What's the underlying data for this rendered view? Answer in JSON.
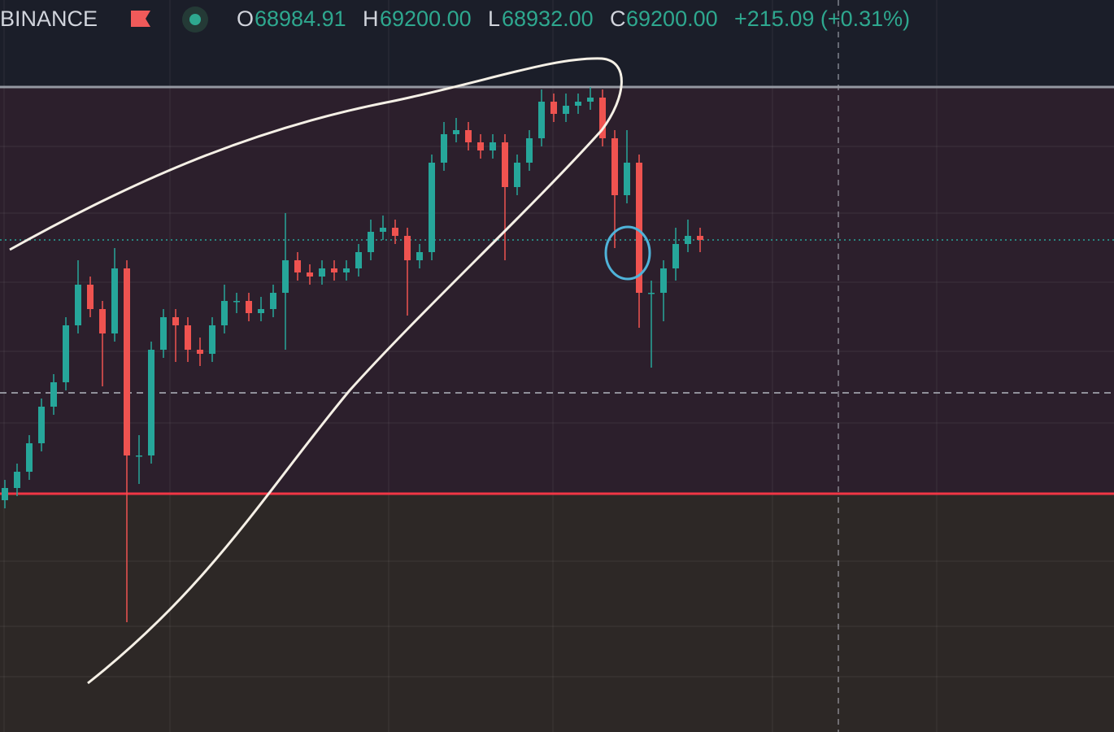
{
  "header": {
    "exchange": "BINANCE",
    "open_label": "O",
    "open": "68984.91",
    "high_label": "H",
    "high": "69200.00",
    "low_label": "L",
    "low": "68932.00",
    "close_label": "C",
    "close": "69200.00",
    "change": "+215.09 (+0.31%)"
  },
  "chart_data": {
    "type": "candlestick",
    "up_color": "#26a69a",
    "down_color": "#ef5350",
    "ylim": [
      67990,
      69790
    ],
    "open": [
      68560,
      68590,
      68630,
      68700,
      68790,
      68850,
      68990,
      69090,
      69030,
      68970,
      69130,
      68670,
      68670,
      68930,
      69010,
      68990,
      68930,
      68920,
      68990,
      69050,
      69050,
      69020,
      69030,
      69070,
      69150,
      69120,
      69110,
      69130,
      69120,
      69130,
      69170,
      69220,
      69230,
      69210,
      69150,
      69170,
      69390,
      69460,
      69470,
      69440,
      69420,
      69440,
      69330,
      69390,
      69450,
      69540,
      69510,
      69530,
      69540,
      69550,
      69450,
      69310,
      69390,
      69070,
      69070,
      69130,
      69190,
      69210
    ],
    "high": [
      68610,
      68650,
      68720,
      68810,
      68870,
      69010,
      69150,
      69110,
      69050,
      69180,
      69150,
      68720,
      68950,
      69030,
      69030,
      69010,
      68960,
      69010,
      69090,
      69070,
      69070,
      69060,
      69090,
      69266,
      69170,
      69140,
      69150,
      69150,
      69150,
      69190,
      69250,
      69260,
      69250,
      69230,
      69190,
      69410,
      69490,
      69500,
      69490,
      69460,
      69460,
      69460,
      69410,
      69470,
      69570,
      69560,
      69560,
      69560,
      69576,
      69570,
      69470,
      69470,
      69410,
      69100,
      69150,
      69230,
      69250,
      69230
    ],
    "low": [
      68540,
      68570,
      68610,
      68680,
      68770,
      68830,
      68970,
      69010,
      68840,
      68950,
      68260,
      68600,
      68650,
      68910,
      68900,
      68900,
      68890,
      68900,
      68970,
      69020,
      69000,
      69000,
      69010,
      68930,
      69100,
      69090,
      69090,
      69100,
      69100,
      69110,
      69150,
      69200,
      69190,
      69014,
      69130,
      69150,
      69370,
      69440,
      69420,
      69400,
      69400,
      69150,
      69310,
      69370,
      69430,
      69490,
      69490,
      69510,
      69520,
      69430,
      69180,
      69290,
      68984,
      68886,
      69000,
      69100,
      69170,
      69170
    ],
    "close": [
      68590,
      68630,
      68700,
      68790,
      68850,
      68990,
      69090,
      69030,
      68970,
      69130,
      68670,
      68670,
      68930,
      69010,
      68990,
      68930,
      68920,
      68990,
      69050,
      69050,
      69020,
      69030,
      69070,
      69150,
      69120,
      69110,
      69130,
      69120,
      69130,
      69170,
      69220,
      69230,
      69210,
      69150,
      69170,
      69390,
      69460,
      69470,
      69440,
      69420,
      69440,
      69330,
      69390,
      69450,
      69540,
      69510,
      69530,
      69540,
      69550,
      69450,
      69310,
      69390,
      69070,
      69070,
      69130,
      69190,
      69210,
      69200
    ],
    "price_lines": [
      {
        "value": 69576,
        "color": "#9598a1",
        "style": "solid"
      },
      {
        "value": 69200,
        "color": "#26a69a",
        "style": "dotted"
      },
      {
        "value": 68824,
        "color": "#b2b5be",
        "style": "dashed"
      },
      {
        "value": 68576,
        "color": "#f23645",
        "style": "solid"
      }
    ]
  }
}
